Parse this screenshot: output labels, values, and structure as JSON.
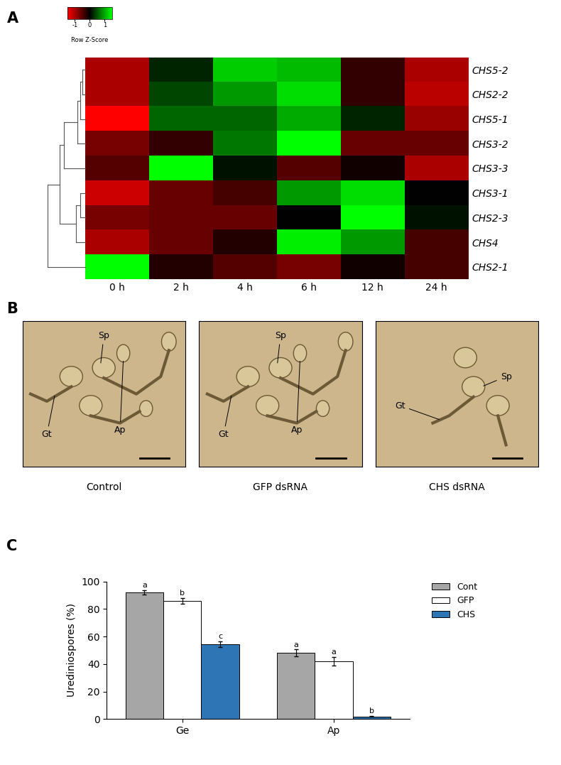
{
  "chart_data": [
    {
      "type": "heatmap",
      "panel": "A",
      "rows": [
        "CHS5-2",
        "CHS2-2",
        "CHS5-1",
        "CHS3-2",
        "CHS3-3",
        "CHS3-1",
        "CHS2-3",
        "CHS4",
        "CHS2-1"
      ],
      "columns": [
        "0 h",
        "2 h",
        "4 h",
        "6 h",
        "12 h",
        "24 h"
      ],
      "cells": [
        [
          -1.0,
          0.2,
          1.2,
          1.1,
          -0.3,
          -1.0
        ],
        [
          -1.0,
          0.4,
          0.9,
          1.3,
          -0.3,
          -1.1
        ],
        [
          -1.6,
          0.6,
          0.6,
          1.0,
          0.2,
          -0.9
        ],
        [
          -0.7,
          -0.3,
          0.7,
          1.6,
          -0.6,
          -0.6
        ],
        [
          -0.5,
          2.0,
          0.1,
          -0.5,
          -0.1,
          -1.0
        ],
        [
          -1.2,
          -0.6,
          -0.4,
          0.9,
          1.3,
          0.0
        ],
        [
          -0.7,
          -0.6,
          -0.6,
          0.0,
          1.7,
          0.1
        ],
        [
          -1.0,
          -0.6,
          -0.2,
          1.4,
          0.9,
          -0.4
        ],
        [
          2.0,
          -0.2,
          -0.5,
          -0.7,
          -0.1,
          -0.4
        ]
      ],
      "color_range": [
        -1.5,
        1.5
      ],
      "color_ticks": [
        -1,
        0,
        1
      ],
      "colorbar_label": "Row Z-Score",
      "dendrogram": [
        [
          0,
          1,
          0.06
        ],
        [
          9,
          2,
          0.09
        ],
        [
          10,
          3,
          0.14
        ],
        [
          11,
          4,
          0.4
        ],
        [
          5,
          6,
          0.1
        ],
        [
          13,
          7,
          0.17
        ],
        [
          12,
          14,
          0.48
        ],
        [
          15,
          8,
          0.7
        ]
      ]
    },
    {
      "type": "image",
      "panel": "B",
      "images": [
        {
          "caption": "Control",
          "labels": [
            "Sp",
            "Gt",
            "Ap"
          ]
        },
        {
          "caption": "GFP dsRNA",
          "labels": [
            "Sp",
            "Gt",
            "Ap"
          ]
        },
        {
          "caption": "CHS dsRNA",
          "labels": [
            "Sp",
            "Gt"
          ]
        }
      ]
    },
    {
      "type": "bar",
      "panel": "C",
      "categories": [
        "Ge",
        "Ap"
      ],
      "series": [
        {
          "name": "Cont",
          "color": "#a6a6a6",
          "values": [
            92,
            48
          ],
          "errors": [
            1.5,
            2.5
          ],
          "letters": [
            "a",
            "a"
          ]
        },
        {
          "name": "GFP",
          "color": "#ffffff",
          "values": [
            86,
            42
          ],
          "errors": [
            2,
            3
          ],
          "letters": [
            "b",
            "a"
          ]
        },
        {
          "name": "CHS",
          "color": "#2e75b6",
          "values": [
            54.5,
            2
          ],
          "errors": [
            2,
            0.5
          ],
          "letters": [
            "c",
            "b"
          ]
        }
      ],
      "ylim": [
        0,
        100
      ],
      "yticks": [
        0,
        20,
        40,
        60,
        80,
        100
      ],
      "ylabel": "Urediniospores (%)",
      "legend": "upper right"
    }
  ]
}
